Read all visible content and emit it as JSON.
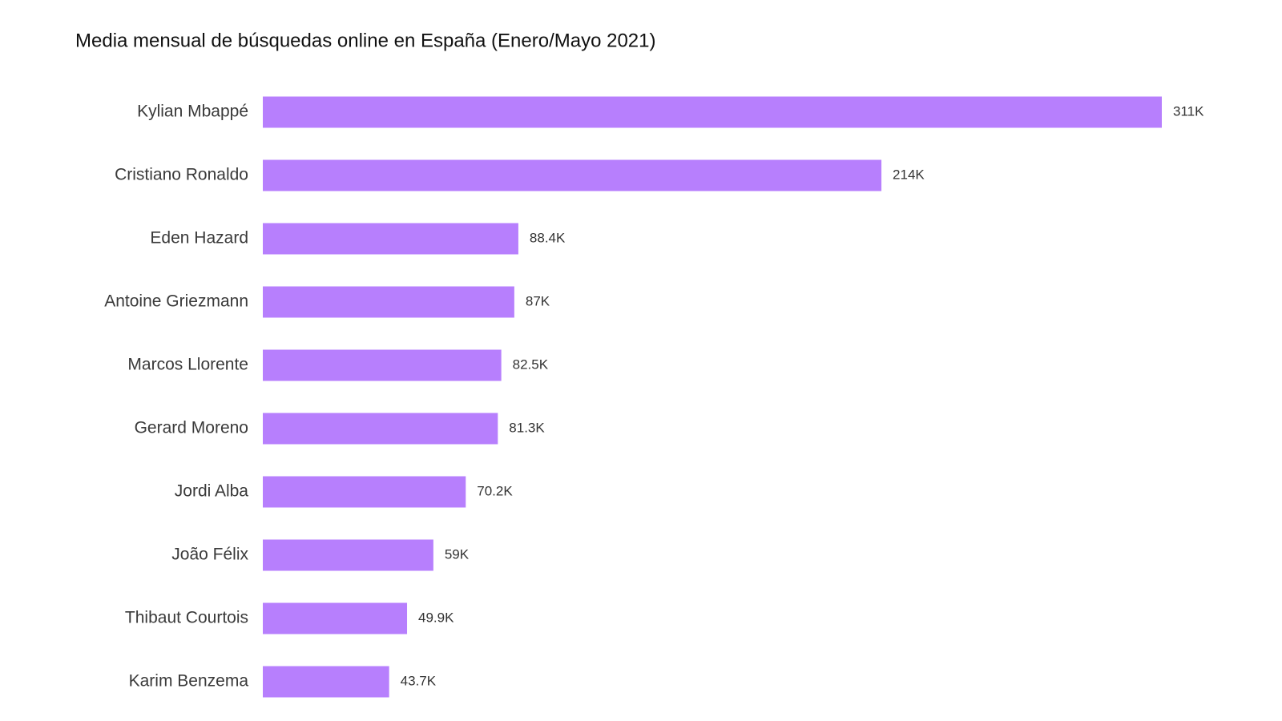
{
  "chart_data": {
    "type": "bar",
    "orientation": "horizontal",
    "subtitle": "Media mensual de búsquedas online en España (Enero/Mayo 2021)",
    "categories": [
      "Kylian Mbappé",
      "Cristiano Ronaldo",
      "Eden Hazard",
      "Antoine Griezmann",
      "Marcos Llorente",
      "Gerard Moreno",
      "Jordi Alba",
      "João Félix",
      "Thibaut Courtois",
      "Karim Benzema"
    ],
    "values": [
      311000,
      214000,
      88400,
      87000,
      82500,
      81300,
      70200,
      59000,
      49900,
      43700
    ],
    "value_labels": [
      "311K",
      "214K",
      "88.4K",
      "87K",
      "82.5K",
      "81.3K",
      "70.2K",
      "59K",
      "49.9K",
      "43.7K"
    ],
    "color": "#b77ffd"
  }
}
